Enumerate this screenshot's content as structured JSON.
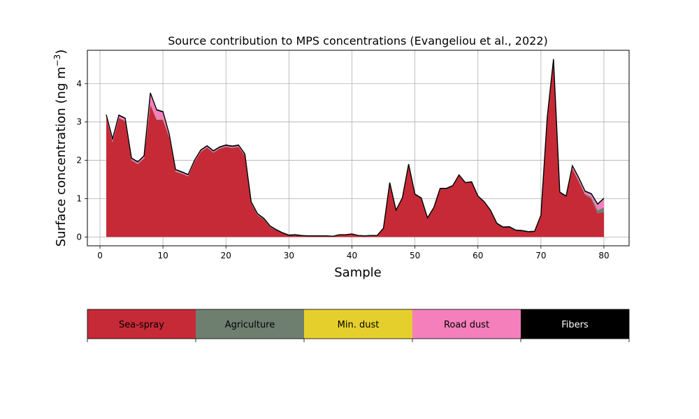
{
  "chart_data": {
    "type": "area",
    "title": "Source contribution to MPS concentrations (Evangeliou et al., 2022)",
    "xlabel": "Sample",
    "ylabel": "Surface concentration (ng m",
    "ylabel_exponent": "−3",
    "ylabel_suffix": ")",
    "xlim": [
      -2,
      84
    ],
    "ylim": [
      -0.23,
      4.87
    ],
    "xticks": [
      0,
      10,
      20,
      30,
      40,
      50,
      60,
      70,
      80
    ],
    "yticks": [
      0,
      1,
      2,
      3,
      4
    ],
    "grid": true,
    "legend_placement": "bottom colorbar",
    "x": [
      1,
      2,
      3,
      4,
      5,
      6,
      7,
      8,
      9,
      10,
      11,
      12,
      13,
      14,
      15,
      16,
      17,
      18,
      19,
      20,
      21,
      22,
      23,
      24,
      25,
      26,
      27,
      28,
      29,
      30,
      31,
      32,
      33,
      34,
      35,
      36,
      37,
      38,
      39,
      40,
      41,
      42,
      43,
      44,
      45,
      46,
      47,
      48,
      49,
      50,
      51,
      52,
      53,
      54,
      55,
      56,
      57,
      58,
      59,
      60,
      61,
      62,
      63,
      64,
      65,
      66,
      67,
      68,
      69,
      70,
      71,
      72,
      73,
      74,
      75,
      76,
      77,
      78,
      79,
      80
    ],
    "series": [
      {
        "name": "Sea-spray",
        "color": "#c62a36",
        "values": [
          3.13,
          2.47,
          3.1,
          3.02,
          2.0,
          1.9,
          2.05,
          3.45,
          3.05,
          3.05,
          2.6,
          1.7,
          1.65,
          1.58,
          1.95,
          2.22,
          2.33,
          2.2,
          2.3,
          2.35,
          2.32,
          2.35,
          2.12,
          0.88,
          0.57,
          0.46,
          0.26,
          0.17,
          0.09,
          0.03,
          0.04,
          0.02,
          0.02,
          0.02,
          0.02,
          0.02,
          0.01,
          0.05,
          0.05,
          0.07,
          0.03,
          0.02,
          0.03,
          0.03,
          0.22,
          1.4,
          0.68,
          1.0,
          1.88,
          1.1,
          1.0,
          0.48,
          0.75,
          1.25,
          1.25,
          1.32,
          1.6,
          1.4,
          1.42,
          1.05,
          0.9,
          0.68,
          0.34,
          0.24,
          0.25,
          0.16,
          0.15,
          0.12,
          0.13,
          0.55,
          3.1,
          4.62,
          1.15,
          1.05,
          1.78,
          1.45,
          1.1,
          1.0,
          0.62,
          0.65
        ]
      },
      {
        "name": "Agriculture",
        "color": "#6e7f6f",
        "values": [
          0.01,
          0.01,
          0.01,
          0.01,
          0.01,
          0.01,
          0.01,
          0.02,
          0.02,
          0.02,
          0.01,
          0.01,
          0.01,
          0.01,
          0.01,
          0.01,
          0.01,
          0.01,
          0.01,
          0.01,
          0.01,
          0.01,
          0.01,
          0.01,
          0.01,
          0.01,
          0.01,
          0.0,
          0.0,
          0.0,
          0.0,
          0.0,
          0.0,
          0.0,
          0.0,
          0.0,
          0.0,
          0.0,
          0.0,
          0.0,
          0.0,
          0.0,
          0.0,
          0.0,
          0.0,
          0.0,
          0.0,
          0.0,
          0.0,
          0.0,
          0.0,
          0.0,
          0.0,
          0.0,
          0.0,
          0.0,
          0.0,
          0.0,
          0.0,
          0.0,
          0.0,
          0.0,
          0.0,
          0.0,
          0.0,
          0.0,
          0.0,
          0.0,
          0.0,
          0.0,
          0.0,
          0.0,
          0.0,
          0.0,
          0.01,
          0.02,
          0.03,
          0.04,
          0.08,
          0.12
        ]
      },
      {
        "name": "Min. dust",
        "color": "#e5cf2d",
        "values": [
          0.0,
          0.0,
          0.0,
          0.0,
          0.0,
          0.0,
          0.0,
          0.0,
          0.0,
          0.0,
          0.0,
          0.0,
          0.0,
          0.0,
          0.0,
          0.0,
          0.0,
          0.0,
          0.0,
          0.0,
          0.0,
          0.0,
          0.0,
          0.0,
          0.0,
          0.0,
          0.0,
          0.0,
          0.0,
          0.0,
          0.0,
          0.0,
          0.0,
          0.0,
          0.0,
          0.0,
          0.0,
          0.0,
          0.0,
          0.0,
          0.0,
          0.0,
          0.0,
          0.0,
          0.0,
          0.0,
          0.0,
          0.0,
          0.0,
          0.0,
          0.0,
          0.0,
          0.0,
          0.0,
          0.0,
          0.0,
          0.0,
          0.0,
          0.0,
          0.0,
          0.0,
          0.0,
          0.0,
          0.0,
          0.0,
          0.0,
          0.0,
          0.0,
          0.0,
          0.0,
          0.0,
          0.0,
          0.0,
          0.0,
          0.0,
          0.0,
          0.0,
          0.0,
          0.0,
          0.0
        ]
      },
      {
        "name": "Road dust",
        "color": "#f47fbb",
        "values": [
          0.03,
          0.06,
          0.05,
          0.05,
          0.03,
          0.03,
          0.04,
          0.27,
          0.23,
          0.18,
          0.05,
          0.03,
          0.02,
          0.02,
          0.02,
          0.02,
          0.02,
          0.02,
          0.02,
          0.02,
          0.02,
          0.02,
          0.02,
          0.01,
          0.01,
          0.0,
          0.0,
          0.0,
          0.0,
          0.0,
          0.0,
          0.0,
          0.0,
          0.0,
          0.0,
          0.0,
          0.0,
          0.0,
          0.0,
          0.0,
          0.0,
          0.0,
          0.0,
          0.0,
          0.0,
          0.0,
          0.0,
          0.0,
          0.0,
          0.0,
          0.0,
          0.0,
          0.0,
          0.0,
          0.0,
          0.0,
          0.0,
          0.0,
          0.0,
          0.0,
          0.0,
          0.0,
          0.0,
          0.0,
          0.0,
          0.0,
          0.0,
          0.0,
          0.0,
          0.0,
          0.0,
          0.0,
          0.0,
          0.0,
          0.05,
          0.06,
          0.05,
          0.07,
          0.14,
          0.22
        ]
      },
      {
        "name": "Fibers",
        "color": "#000000",
        "values": [
          0.02,
          0.02,
          0.02,
          0.02,
          0.02,
          0.02,
          0.02,
          0.02,
          0.02,
          0.02,
          0.02,
          0.02,
          0.02,
          0.02,
          0.02,
          0.02,
          0.02,
          0.02,
          0.02,
          0.02,
          0.02,
          0.02,
          0.02,
          0.02,
          0.02,
          0.02,
          0.02,
          0.02,
          0.02,
          0.02,
          0.02,
          0.02,
          0.01,
          0.01,
          0.01,
          0.01,
          0.01,
          0.01,
          0.01,
          0.01,
          0.01,
          0.01,
          0.01,
          0.01,
          0.01,
          0.02,
          0.02,
          0.02,
          0.02,
          0.02,
          0.02,
          0.02,
          0.02,
          0.02,
          0.02,
          0.02,
          0.02,
          0.02,
          0.02,
          0.02,
          0.02,
          0.02,
          0.02,
          0.02,
          0.02,
          0.02,
          0.02,
          0.02,
          0.02,
          0.02,
          0.02,
          0.02,
          0.02,
          0.02,
          0.02,
          0.02,
          0.02,
          0.02,
          0.02,
          0.02
        ]
      }
    ],
    "legend": {
      "entries": [
        {
          "label": "Sea-spray",
          "color": "#c62a36",
          "text_color": "#000000"
        },
        {
          "label": "Agriculture",
          "color": "#6e7f6f",
          "text_color": "#000000"
        },
        {
          "label": "Min. dust",
          "color": "#e5cf2d",
          "text_color": "#000000"
        },
        {
          "label": "Road dust",
          "color": "#f47fbb",
          "text_color": "#000000"
        },
        {
          "label": "Fibers",
          "color": "#000000",
          "text_color": "#ffffff"
        }
      ]
    }
  }
}
